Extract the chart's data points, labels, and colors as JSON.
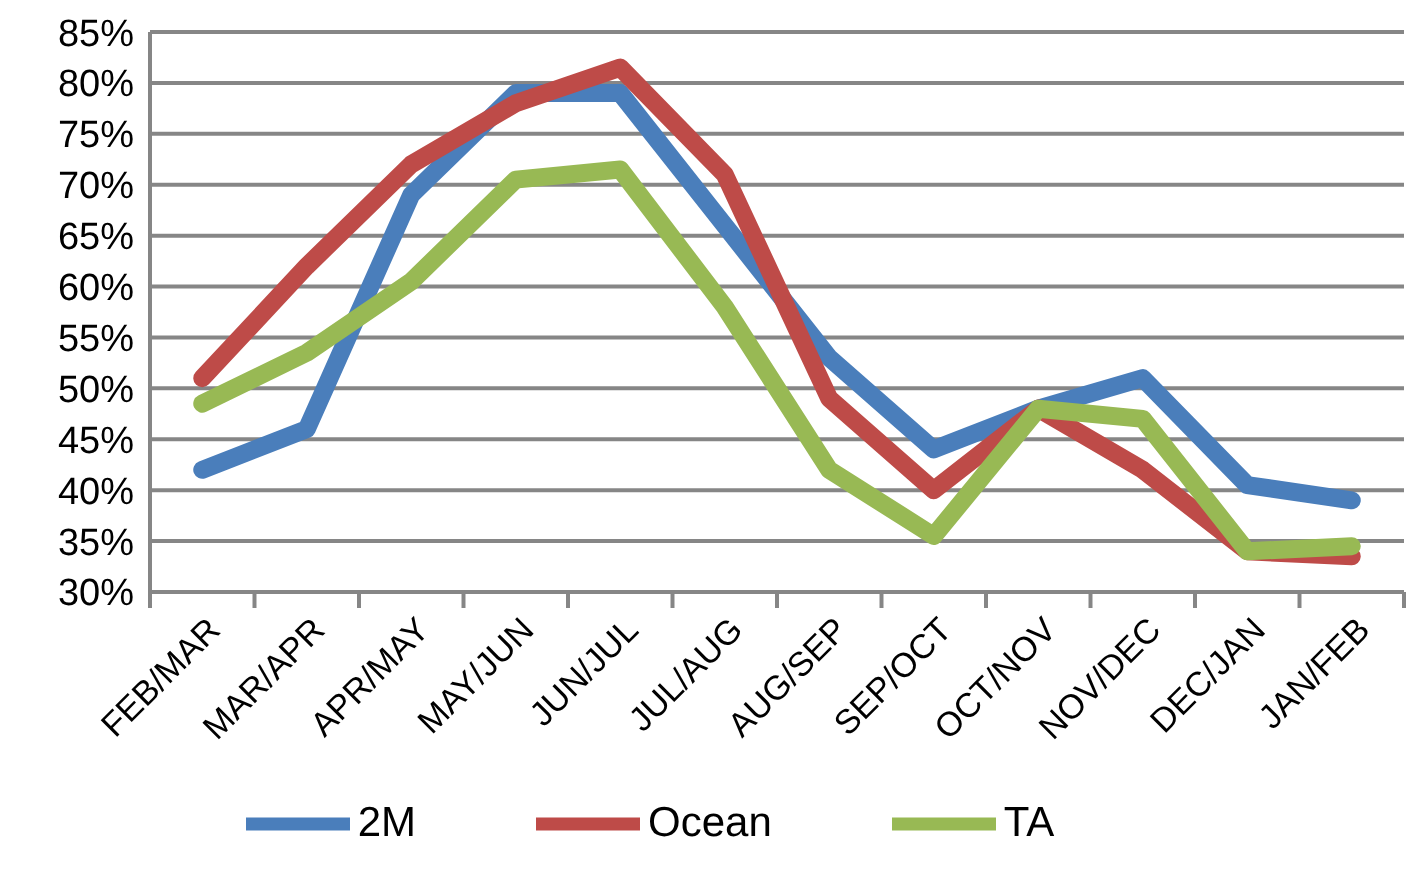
{
  "chart_data": {
    "type": "line",
    "categories": [
      "FEB/MAR",
      "MAR/APR",
      "APR/MAY",
      "MAY/JUN",
      "JUN/JUL",
      "JUL/AUG",
      "AUG/SEP",
      "SEP/OCT",
      "OCT/NOV",
      "NOV/DEC",
      "DEC/JAN",
      "JAN/FEB"
    ],
    "series": [
      {
        "name": "2M",
        "color": "#4a7ebb",
        "values": [
          42,
          46,
          69,
          79,
          79,
          66,
          53,
          44,
          48,
          51,
          40.5,
          39
        ]
      },
      {
        "name": "Ocean",
        "color": "#be4b48",
        "values": [
          51,
          62,
          72,
          78,
          81.5,
          71,
          49,
          40,
          48,
          42,
          34,
          33.5
        ]
      },
      {
        "name": "TA",
        "color": "#98b954",
        "values": [
          48.5,
          53.5,
          60.5,
          70.5,
          71.5,
          58,
          42,
          35.5,
          48,
          47,
          34,
          34.5
        ]
      }
    ],
    "ylim": [
      30,
      85
    ],
    "yticks": [
      {
        "value": 30,
        "label": "30%"
      },
      {
        "value": 35,
        "label": "35%"
      },
      {
        "value": 40,
        "label": "40%"
      },
      {
        "value": 45,
        "label": "45%"
      },
      {
        "value": 50,
        "label": "50%"
      },
      {
        "value": 55,
        "label": "55%"
      },
      {
        "value": 60,
        "label": "60%"
      },
      {
        "value": 65,
        "label": "65%"
      },
      {
        "value": 70,
        "label": "70%"
      },
      {
        "value": 75,
        "label": "75%"
      },
      {
        "value": 80,
        "label": "80%"
      },
      {
        "value": 85,
        "label": "85%"
      }
    ],
    "grid": "y",
    "legend": "bottom",
    "marker": "none",
    "line_style": "solid"
  }
}
